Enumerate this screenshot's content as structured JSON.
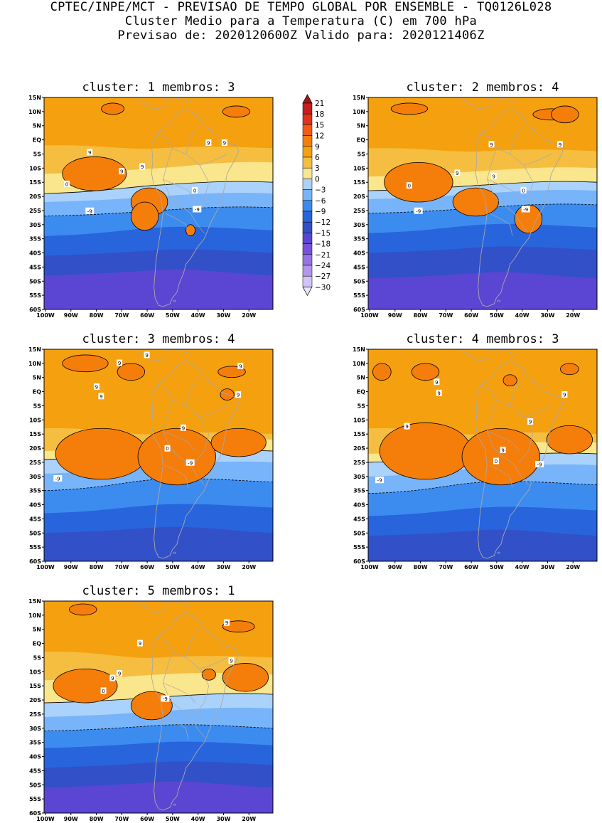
{
  "header": {
    "line1": "CPTEC/INPE/MCT - PREVISAO DE TEMPO GLOBAL POR ENSEMBLE - TQ0126L028",
    "line2": "Cluster Medio para a Temperatura (C) em 700 hPa",
    "line3": "Previsao de: 2020120600Z    Valido para: 2020121406Z"
  },
  "axes": {
    "lat_labels": [
      "15N",
      "10N",
      "5N",
      "EQ",
      "5S",
      "10S",
      "15S",
      "20S",
      "25S",
      "30S",
      "35S",
      "40S",
      "45S",
      "50S",
      "55S",
      "60S"
    ],
    "lon_labels": [
      "100W",
      "90W",
      "80W",
      "70W",
      "60W",
      "50W",
      "40W",
      "30W",
      "20W"
    ]
  },
  "colorbar": {
    "labels": [
      "21",
      "18",
      "15",
      "12",
      "9",
      "6",
      "3",
      "0",
      "-3",
      "-6",
      "-9",
      "-12",
      "-15",
      "-18",
      "-21",
      "-24",
      "-27",
      "-30"
    ],
    "colors": [
      "#a01818",
      "#c81e1e",
      "#e1321e",
      "#f55a14",
      "#f57d0a",
      "#f5a00f",
      "#f5be41",
      "#fae68c",
      "#aad2fa",
      "#78b4fa",
      "#3c8cf0",
      "#2864dc",
      "#3250c8",
      "#5a46d2",
      "#7850dc",
      "#9673e6",
      "#b496f0",
      "#d2c3fa",
      "#ebe6ff"
    ]
  },
  "panels": [
    {
      "title": "cluster: 1   membros: 3",
      "contour_labels": [
        "9",
        "9",
        "9",
        "9",
        "9",
        "0",
        "0",
        "-9",
        "-9"
      ]
    },
    {
      "title": "cluster: 2   membros: 4",
      "contour_labels": [
        "9",
        "9",
        "9",
        "9",
        "0",
        "0",
        "-9",
        "-9"
      ]
    },
    {
      "title": "cluster: 3   membros: 4",
      "contour_labels": [
        "9",
        "9",
        "9",
        "9",
        "9",
        "9",
        "9",
        "0",
        "-9",
        "-9"
      ]
    },
    {
      "title": "cluster: 4   membros: 3",
      "contour_labels": [
        "9",
        "9",
        "9",
        "9",
        "9",
        "9",
        "0",
        "-9",
        "-9"
      ]
    },
    {
      "title": "cluster: 5   membros: 1",
      "contour_labels": [
        "9",
        "9",
        "9",
        "9",
        "9",
        "0",
        "-9"
      ]
    }
  ]
}
